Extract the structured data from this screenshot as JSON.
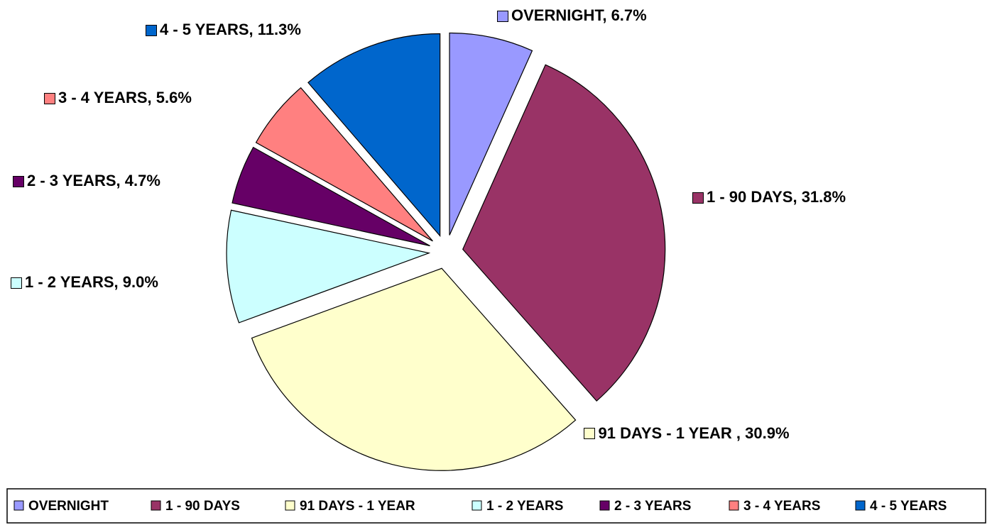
{
  "chart_data": {
    "type": "pie",
    "categories": [
      "OVERNIGHT",
      "1 - 90 DAYS",
      "91 DAYS - 1 YEAR",
      "1 - 2 YEARS",
      "2 - 3 YEARS",
      "3 - 4 YEARS",
      "4 - 5 YEARS"
    ],
    "values": [
      6.7,
      31.8,
      30.9,
      9.0,
      4.7,
      5.6,
      11.3
    ],
    "value_labels": [
      "OVERNIGHT, 6.7%",
      "1 - 90 DAYS, 31.8%",
      "91 DAYS - 1 YEAR , 30.9%",
      "1 - 2 YEARS, 9.0%",
      "2 - 3 YEARS, 4.7%",
      "3 - 4 YEARS, 5.6%",
      "4 - 5 YEARS, 11.3%"
    ],
    "colors": [
      "#9999ff",
      "#993366",
      "#ffffcc",
      "#ccffff",
      "#660066",
      "#ff8080",
      "#0066cc"
    ],
    "legend": "bottom"
  }
}
